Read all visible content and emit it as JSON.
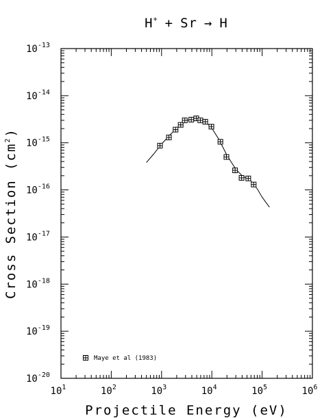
{
  "chart_data": {
    "type": "scatter",
    "title": {
      "projectile": "H",
      "charge": "+",
      "plus": "+",
      "target": "Sr",
      "arrow": "→",
      "product": "H"
    },
    "xlabel": "Projectile Energy (eV)",
    "ylabel": {
      "text": "Cross Section (cm",
      "exponent": "2",
      "close": ")"
    },
    "x_scale": "log",
    "y_scale": "log",
    "xlim": [
      10,
      1000000
    ],
    "ylim": [
      1e-20,
      1e-13
    ],
    "x_ticks": [
      {
        "base": "10",
        "exp": "1",
        "value": 10
      },
      {
        "base": "10",
        "exp": "2",
        "value": 100
      },
      {
        "base": "10",
        "exp": "3",
        "value": 1000
      },
      {
        "base": "10",
        "exp": "4",
        "value": 10000
      },
      {
        "base": "10",
        "exp": "5",
        "value": 100000
      },
      {
        "base": "10",
        "exp": "6",
        "value": 1000000
      }
    ],
    "y_ticks": [
      {
        "base": "10",
        "exp": "-20",
        "value": 1e-20
      },
      {
        "base": "10",
        "exp": "-19",
        "value": 1e-19
      },
      {
        "base": "10",
        "exp": "-18",
        "value": 1e-18
      },
      {
        "base": "10",
        "exp": "-17",
        "value": 1e-17
      },
      {
        "base": "10",
        "exp": "-16",
        "value": 1e-16
      },
      {
        "base": "10",
        "exp": "-15",
        "value": 1e-15
      },
      {
        "base": "10",
        "exp": "-14",
        "value": 1e-14
      },
      {
        "base": "10",
        "exp": "-13",
        "value": 1e-13
      }
    ],
    "grid": false,
    "legend_position": "bottom-left",
    "series": [
      {
        "name": "Maye et al (1983)",
        "kind": "points",
        "marker": "boxed-plus",
        "points": [
          [
            930,
            8.7e-16
          ],
          [
            1400,
            1.3e-15
          ],
          [
            1900,
            1.9e-15
          ],
          [
            2400,
            2.4e-15
          ],
          [
            2900,
            3e-15
          ],
          [
            3900,
            3.1e-15
          ],
          [
            4900,
            3.3e-15
          ],
          [
            5900,
            3e-15
          ],
          [
            7400,
            2.8e-15
          ],
          [
            9800,
            2.2e-15
          ],
          [
            14800,
            1.05e-15
          ],
          [
            19500,
            5e-16
          ],
          [
            29000,
            2.6e-16
          ],
          [
            39000,
            1.8e-16
          ],
          [
            53000,
            1.75e-16
          ],
          [
            68000,
            1.3e-16
          ]
        ]
      },
      {
        "kind": "fit",
        "points": [
          [
            500,
            3.8e-16
          ],
          [
            700,
            5.8e-16
          ],
          [
            1000,
            9.4e-16
          ],
          [
            1500,
            1.5e-15
          ],
          [
            2000,
            2.05e-15
          ],
          [
            3000,
            2.9e-15
          ],
          [
            4000,
            3.25e-15
          ],
          [
            5000,
            3.3e-15
          ],
          [
            6000,
            3.15e-15
          ],
          [
            8000,
            2.6e-15
          ],
          [
            10000,
            2.05e-15
          ],
          [
            14000,
            1.15e-15
          ],
          [
            20000,
            5.4e-16
          ],
          [
            30000,
            2.75e-16
          ],
          [
            40000,
            2e-16
          ],
          [
            60000,
            1.55e-16
          ],
          [
            80000,
            1.05e-16
          ],
          [
            100000,
            7e-17
          ],
          [
            140000,
            4.3e-17
          ]
        ]
      }
    ]
  }
}
